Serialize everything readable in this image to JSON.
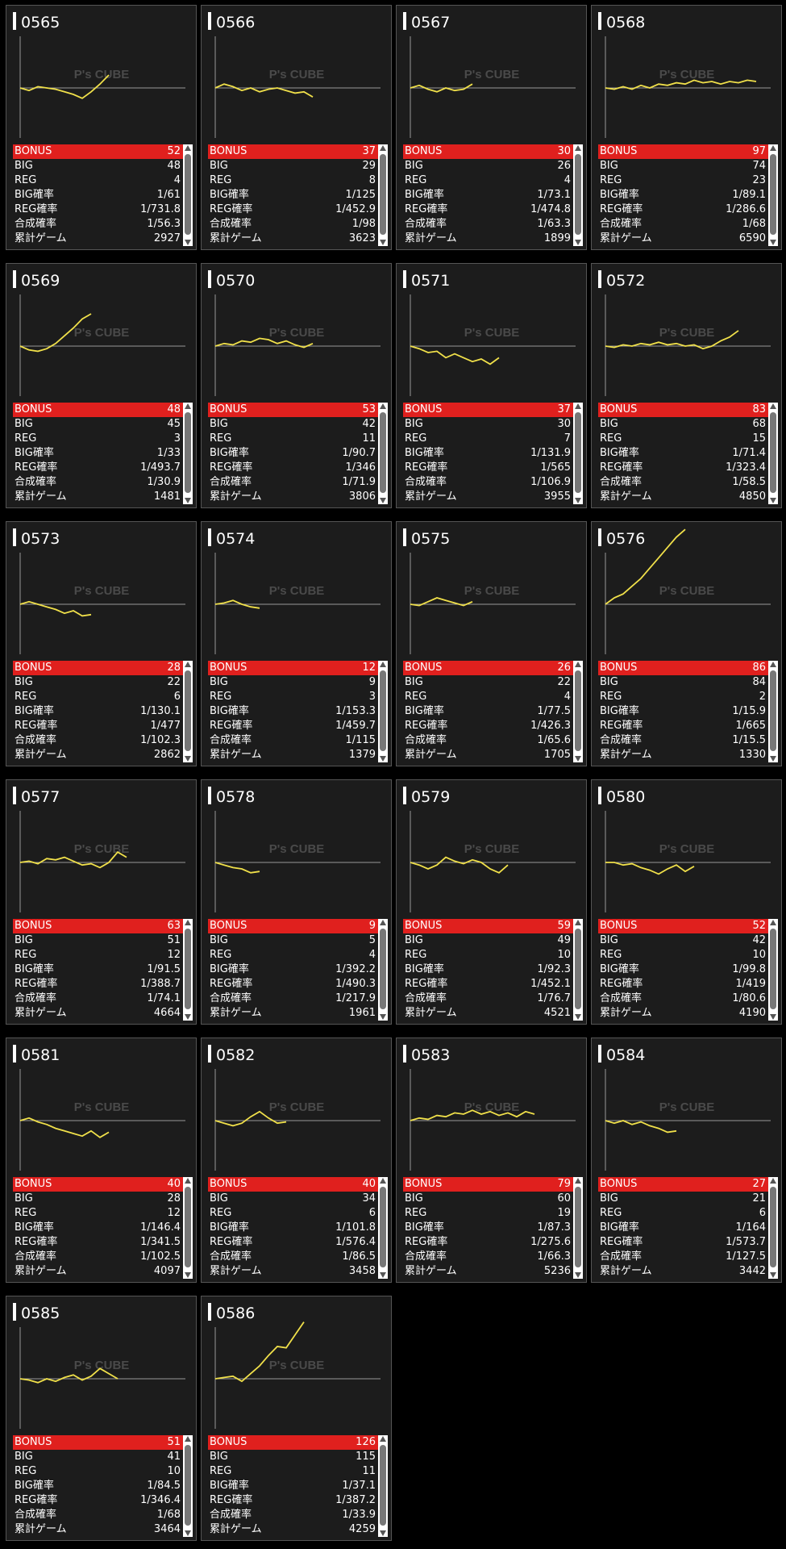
{
  "watermark": "P's CUBE",
  "colors": {
    "bonus_bg": "#e0201e",
    "line": "#f0e04a",
    "card_bg": "#1c1c1c"
  },
  "labels": {
    "bonus": "BONUS",
    "big": "BIG",
    "reg": "REG",
    "big_rate": "BIG確率",
    "reg_rate": "REG確率",
    "total_rate": "合成確率",
    "games": "累計ゲーム"
  },
  "machines": [
    {
      "id": "0565",
      "bonus": "52",
      "big": "48",
      "reg": "4",
      "big_rate": "1/61",
      "reg_rate": "1/731.8",
      "total_rate": "1/56.3",
      "games": "2927",
      "chart_data": {
        "type": "line",
        "y": [
          0,
          -2,
          1,
          0,
          -1,
          -3,
          -5,
          -8,
          -3,
          3,
          10
        ]
      }
    },
    {
      "id": "0566",
      "bonus": "37",
      "big": "29",
      "reg": "8",
      "big_rate": "1/125",
      "reg_rate": "1/452.9",
      "total_rate": "1/98",
      "games": "3623",
      "chart_data": {
        "type": "line",
        "y": [
          0,
          3,
          1,
          -2,
          0,
          -3,
          -1,
          0,
          -2,
          -4,
          -3,
          -7
        ]
      }
    },
    {
      "id": "0567",
      "bonus": "30",
      "big": "26",
      "reg": "4",
      "big_rate": "1/73.1",
      "reg_rate": "1/474.8",
      "total_rate": "1/63.3",
      "games": "1899",
      "chart_data": {
        "type": "line",
        "y": [
          0,
          2,
          -1,
          -3,
          0,
          -2,
          -1,
          3
        ]
      }
    },
    {
      "id": "0568",
      "bonus": "97",
      "big": "74",
      "reg": "23",
      "big_rate": "1/89.1",
      "reg_rate": "1/286.6",
      "total_rate": "1/68",
      "games": "6590",
      "chart_data": {
        "type": "line",
        "y": [
          0,
          -1,
          1,
          -1,
          2,
          0,
          3,
          2,
          4,
          3,
          6,
          4,
          5,
          3,
          5,
          4,
          6,
          5
        ]
      }
    },
    {
      "id": "0569",
      "bonus": "48",
      "big": "45",
      "reg": "3",
      "big_rate": "1/33",
      "reg_rate": "1/493.7",
      "total_rate": "1/30.9",
      "games": "1481",
      "chart_data": {
        "type": "line",
        "y": [
          0,
          -3,
          -4,
          -2,
          2,
          8,
          14,
          21,
          25
        ]
      }
    },
    {
      "id": "0570",
      "bonus": "53",
      "big": "42",
      "reg": "11",
      "big_rate": "1/90.7",
      "reg_rate": "1/346",
      "total_rate": "1/71.9",
      "games": "3806",
      "chart_data": {
        "type": "line",
        "y": [
          0,
          2,
          1,
          4,
          3,
          6,
          5,
          2,
          4,
          1,
          -1,
          2
        ]
      }
    },
    {
      "id": "0571",
      "bonus": "37",
      "big": "30",
      "reg": "7",
      "big_rate": "1/131.9",
      "reg_rate": "1/565",
      "total_rate": "1/106.9",
      "games": "3955",
      "chart_data": {
        "type": "line",
        "y": [
          0,
          -2,
          -5,
          -4,
          -9,
          -6,
          -9,
          -12,
          -10,
          -14,
          -9
        ]
      }
    },
    {
      "id": "0572",
      "bonus": "83",
      "big": "68",
      "reg": "15",
      "big_rate": "1/71.4",
      "reg_rate": "1/323.4",
      "total_rate": "1/58.5",
      "games": "4850",
      "chart_data": {
        "type": "line",
        "y": [
          0,
          -1,
          1,
          0,
          2,
          1,
          3,
          1,
          2,
          0,
          1,
          -2,
          0,
          4,
          7,
          12
        ]
      }
    },
    {
      "id": "0573",
      "bonus": "28",
      "big": "22",
      "reg": "6",
      "big_rate": "1/130.1",
      "reg_rate": "1/477",
      "total_rate": "1/102.3",
      "games": "2862",
      "chart_data": {
        "type": "line",
        "y": [
          0,
          2,
          0,
          -2,
          -4,
          -7,
          -5,
          -9,
          -8
        ]
      }
    },
    {
      "id": "0574",
      "bonus": "12",
      "big": "9",
      "reg": "3",
      "big_rate": "1/153.3",
      "reg_rate": "1/459.7",
      "total_rate": "1/115",
      "games": "1379",
      "chart_data": {
        "type": "line",
        "y": [
          0,
          1,
          3,
          0,
          -2,
          -3
        ]
      }
    },
    {
      "id": "0575",
      "bonus": "26",
      "big": "22",
      "reg": "4",
      "big_rate": "1/77.5",
      "reg_rate": "1/426.3",
      "total_rate": "1/65.6",
      "games": "1705",
      "chart_data": {
        "type": "line",
        "y": [
          0,
          -1,
          2,
          5,
          3,
          1,
          -1,
          2
        ]
      }
    },
    {
      "id": "0576",
      "bonus": "86",
      "big": "84",
      "reg": "2",
      "big_rate": "1/15.9",
      "reg_rate": "1/665",
      "total_rate": "1/15.5",
      "games": "1330",
      "chart_data": {
        "type": "line",
        "y": [
          0,
          5,
          8,
          14,
          20,
          28,
          36,
          44,
          52,
          58
        ]
      }
    },
    {
      "id": "0577",
      "bonus": "63",
      "big": "51",
      "reg": "12",
      "big_rate": "1/91.5",
      "reg_rate": "1/388.7",
      "total_rate": "1/74.1",
      "games": "4664",
      "chart_data": {
        "type": "line",
        "y": [
          0,
          1,
          -1,
          3,
          2,
          4,
          1,
          -2,
          -1,
          -4,
          0,
          8,
          4
        ]
      }
    },
    {
      "id": "0578",
      "bonus": "9",
      "big": "5",
      "reg": "4",
      "big_rate": "1/392.2",
      "reg_rate": "1/490.3",
      "total_rate": "1/217.9",
      "games": "1961",
      "chart_data": {
        "type": "line",
        "y": [
          0,
          -2,
          -4,
          -5,
          -8,
          -7
        ]
      }
    },
    {
      "id": "0579",
      "bonus": "59",
      "big": "49",
      "reg": "10",
      "big_rate": "1/92.3",
      "reg_rate": "1/452.1",
      "total_rate": "1/76.7",
      "games": "4521",
      "chart_data": {
        "type": "line",
        "y": [
          0,
          -2,
          -5,
          -2,
          4,
          1,
          -1,
          2,
          0,
          -5,
          -8,
          -2
        ]
      }
    },
    {
      "id": "0580",
      "bonus": "52",
      "big": "42",
      "reg": "10",
      "big_rate": "1/99.8",
      "reg_rate": "1/419",
      "total_rate": "1/80.6",
      "games": "4190",
      "chart_data": {
        "type": "line",
        "y": [
          0,
          0,
          -2,
          -1,
          -4,
          -6,
          -9,
          -5,
          -2,
          -7,
          -3
        ]
      }
    },
    {
      "id": "0581",
      "bonus": "40",
      "big": "28",
      "reg": "12",
      "big_rate": "1/146.4",
      "reg_rate": "1/341.5",
      "total_rate": "1/102.5",
      "games": "4097",
      "chart_data": {
        "type": "line",
        "y": [
          0,
          2,
          -1,
          -3,
          -6,
          -8,
          -10,
          -12,
          -8,
          -13,
          -9
        ]
      }
    },
    {
      "id": "0582",
      "bonus": "40",
      "big": "34",
      "reg": "6",
      "big_rate": "1/101.8",
      "reg_rate": "1/576.4",
      "total_rate": "1/86.5",
      "games": "3458",
      "chart_data": {
        "type": "line",
        "y": [
          0,
          -2,
          -4,
          -2,
          3,
          7,
          2,
          -2,
          -1
        ]
      }
    },
    {
      "id": "0583",
      "bonus": "79",
      "big": "60",
      "reg": "19",
      "big_rate": "1/87.3",
      "reg_rate": "1/275.6",
      "total_rate": "1/66.3",
      "games": "5236",
      "chart_data": {
        "type": "line",
        "y": [
          0,
          2,
          1,
          4,
          3,
          6,
          5,
          8,
          5,
          7,
          4,
          6,
          3,
          7,
          5
        ]
      }
    },
    {
      "id": "0584",
      "bonus": "27",
      "big": "21",
      "reg": "6",
      "big_rate": "1/164",
      "reg_rate": "1/573.7",
      "total_rate": "1/127.5",
      "games": "3442",
      "chart_data": {
        "type": "line",
        "y": [
          0,
          -2,
          0,
          -3,
          -1,
          -4,
          -6,
          -9,
          -8
        ]
      }
    },
    {
      "id": "0585",
      "bonus": "51",
      "big": "41",
      "reg": "10",
      "big_rate": "1/84.5",
      "reg_rate": "1/346.4",
      "total_rate": "1/68",
      "games": "3464",
      "chart_data": {
        "type": "line",
        "y": [
          0,
          -1,
          -3,
          0,
          -2,
          1,
          3,
          -1,
          2,
          8,
          4,
          0
        ]
      }
    },
    {
      "id": "0586",
      "bonus": "126",
      "big": "115",
      "reg": "11",
      "big_rate": "1/37.1",
      "reg_rate": "1/387.2",
      "total_rate": "1/33.9",
      "games": "4259",
      "chart_data": {
        "type": "line",
        "y": [
          0,
          1,
          2,
          -2,
          4,
          10,
          18,
          25,
          24,
          34,
          44
        ]
      }
    }
  ]
}
